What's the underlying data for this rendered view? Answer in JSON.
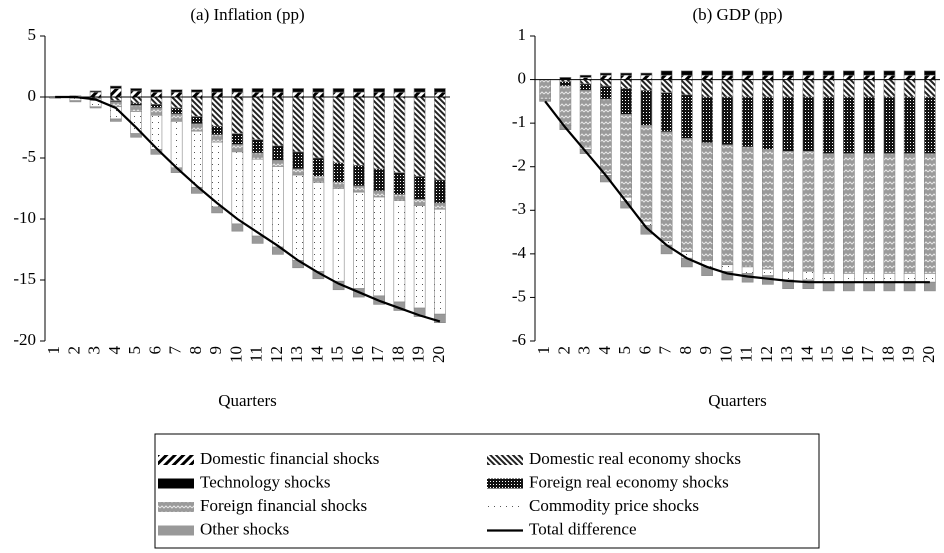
{
  "chart_data": [
    {
      "type": "bar",
      "stacked": true,
      "title": "(a) Inflation (pp)",
      "x_label": "Quarters",
      "categories": [
        "1",
        "2",
        "3",
        "4",
        "5",
        "6",
        "7",
        "8",
        "9",
        "10",
        "11",
        "12",
        "13",
        "14",
        "15",
        "16",
        "17",
        "18",
        "19",
        "20"
      ],
      "ylim": [
        -20,
        5
      ],
      "yticks": [
        -20,
        -15,
        -10,
        -5,
        0,
        5
      ],
      "series": [
        {
          "name": "Domestic financial shocks",
          "pattern": "diagonal",
          "values": [
            0,
            0.1,
            0.4,
            0.7,
            0.5,
            0.4,
            0.4,
            0.4,
            0.4,
            0.4,
            0.4,
            0.4,
            0.4,
            0.4,
            0.4,
            0.4,
            0.4,
            0.4,
            0.4,
            0.4
          ]
        },
        {
          "name": "Domestic real economy shocks",
          "pattern": "backdiagonal",
          "values": [
            0,
            0,
            -0.1,
            -0.3,
            -0.5,
            -0.6,
            -0.9,
            -1.6,
            -2.4,
            -3.0,
            -3.5,
            -4.0,
            -4.5,
            -5.0,
            -5.4,
            -5.6,
            -5.9,
            -6.2,
            -6.5,
            -6.8
          ]
        },
        {
          "name": "Technology shocks",
          "pattern": "black",
          "values": [
            0,
            0,
            0.1,
            0.2,
            0.2,
            0.2,
            0.2,
            0.2,
            0.3,
            0.3,
            0.3,
            0.3,
            0.3,
            0.3,
            0.3,
            0.3,
            0.3,
            0.3,
            0.3,
            0.3
          ]
        },
        {
          "name": "Foreign real economy shocks",
          "pattern": "densedots",
          "values": [
            0,
            0,
            0,
            -0.1,
            -0.2,
            -0.3,
            -0.5,
            -0.6,
            -0.7,
            -0.9,
            -1.1,
            -1.2,
            -1.4,
            -1.5,
            -1.6,
            -1.7,
            -1.8,
            -1.8,
            -1.9,
            -1.9
          ]
        },
        {
          "name": "Foreign financial shocks",
          "pattern": "wavy",
          "values": [
            0,
            -0.1,
            -0.2,
            -0.4,
            -0.5,
            -0.6,
            -0.6,
            -0.6,
            -0.6,
            -0.6,
            -0.5,
            -0.5,
            -0.5,
            -0.5,
            -0.5,
            -0.5,
            -0.5,
            -0.5,
            -0.5,
            -0.5
          ]
        },
        {
          "name": "Commodity price shocks",
          "pattern": "dots",
          "values": [
            -0.1,
            -0.2,
            -0.5,
            -1.0,
            -1.8,
            -2.8,
            -3.8,
            -4.6,
            -5.3,
            -5.9,
            -6.3,
            -6.6,
            -7.0,
            -7.3,
            -7.6,
            -7.9,
            -8.1,
            -8.3,
            -8.4,
            -8.6
          ]
        },
        {
          "name": "Other shocks",
          "pattern": "grey",
          "values": [
            0,
            -0.1,
            -0.1,
            -0.2,
            -0.3,
            -0.4,
            -0.4,
            -0.5,
            -0.5,
            -0.6,
            -0.6,
            -0.6,
            -0.6,
            -0.6,
            -0.7,
            -0.7,
            -0.7,
            -0.7,
            -0.7,
            -0.7
          ]
        },
        {
          "name": "Total difference",
          "type": "line",
          "color": "#000000",
          "values": [
            0,
            0,
            -0.2,
            -0.9,
            -2.5,
            -4.2,
            -5.8,
            -7.3,
            -8.7,
            -10.0,
            -11.1,
            -12.2,
            -13.4,
            -14.4,
            -15.3,
            -16.0,
            -16.7,
            -17.3,
            -17.9,
            -18.4
          ]
        }
      ]
    },
    {
      "type": "bar",
      "stacked": true,
      "title": "(b) GDP (pp)",
      "x_label": "Quarters",
      "categories": [
        "1",
        "2",
        "3",
        "4",
        "5",
        "6",
        "7",
        "8",
        "9",
        "10",
        "11",
        "12",
        "13",
        "14",
        "15",
        "16",
        "17",
        "18",
        "19",
        "20"
      ],
      "ylim": [
        -6,
        1
      ],
      "yticks": [
        -6,
        -5,
        -4,
        -3,
        -2,
        -1,
        0,
        1
      ],
      "series": [
        {
          "pattern": "diagonal",
          "values": [
            0,
            0,
            0.05,
            0.1,
            0.1,
            0.1,
            0.1,
            0.1,
            0.1,
            0.1,
            0.1,
            0.1,
            0.1,
            0.1,
            0.1,
            0.1,
            0.1,
            0.1,
            0.1,
            0.1
          ]
        },
        {
          "pattern": "backdiagonal",
          "values": [
            0,
            -0.05,
            -0.1,
            -0.15,
            -0.2,
            -0.25,
            -0.3,
            -0.35,
            -0.4,
            -0.4,
            -0.4,
            -0.4,
            -0.4,
            -0.4,
            -0.4,
            -0.4,
            -0.4,
            -0.4,
            -0.4,
            -0.4
          ]
        },
        {
          "pattern": "black",
          "values": [
            0,
            0.05,
            0.05,
            0.05,
            0.05,
            0.05,
            0.1,
            0.1,
            0.1,
            0.1,
            0.1,
            0.1,
            0.1,
            0.1,
            0.1,
            0.1,
            0.1,
            0.1,
            0.1,
            0.1
          ]
        },
        {
          "pattern": "densedots",
          "values": [
            0,
            -0.1,
            -0.15,
            -0.3,
            -0.6,
            -0.8,
            -0.9,
            -1.0,
            -1.05,
            -1.1,
            -1.15,
            -1.2,
            -1.25,
            -1.25,
            -1.3,
            -1.3,
            -1.3,
            -1.3,
            -1.3,
            -1.3
          ]
        },
        {
          "pattern": "wavy",
          "values": [
            -0.45,
            -0.9,
            -1.3,
            -1.7,
            -1.9,
            -2.2,
            -2.5,
            -2.6,
            -2.7,
            -2.75,
            -2.75,
            -2.75,
            -2.75,
            -2.75,
            -2.75,
            -2.75,
            -2.75,
            -2.75,
            -2.75,
            -2.75
          ]
        },
        {
          "pattern": "dots",
          "values": [
            0,
            0,
            -0.05,
            -0.05,
            -0.1,
            -0.1,
            -0.1,
            -0.15,
            -0.15,
            -0.15,
            -0.15,
            -0.15,
            -0.2,
            -0.2,
            -0.2,
            -0.2,
            -0.2,
            -0.2,
            -0.2,
            -0.2
          ]
        },
        {
          "pattern": "grey",
          "values": [
            -0.05,
            -0.1,
            -0.1,
            -0.15,
            -0.15,
            -0.2,
            -0.2,
            -0.2,
            -0.2,
            -0.2,
            -0.2,
            -0.2,
            -0.2,
            -0.2,
            -0.2,
            -0.2,
            -0.2,
            -0.2,
            -0.2,
            -0.2
          ]
        },
        {
          "type": "line",
          "color": "#000000",
          "values": [
            -0.5,
            -1.1,
            -1.65,
            -2.2,
            -2.8,
            -3.4,
            -3.8,
            -4.1,
            -4.3,
            -4.45,
            -4.52,
            -4.57,
            -4.62,
            -4.65,
            -4.65,
            -4.65,
            -4.65,
            -4.65,
            -4.65,
            -4.65
          ]
        }
      ]
    }
  ]
}
